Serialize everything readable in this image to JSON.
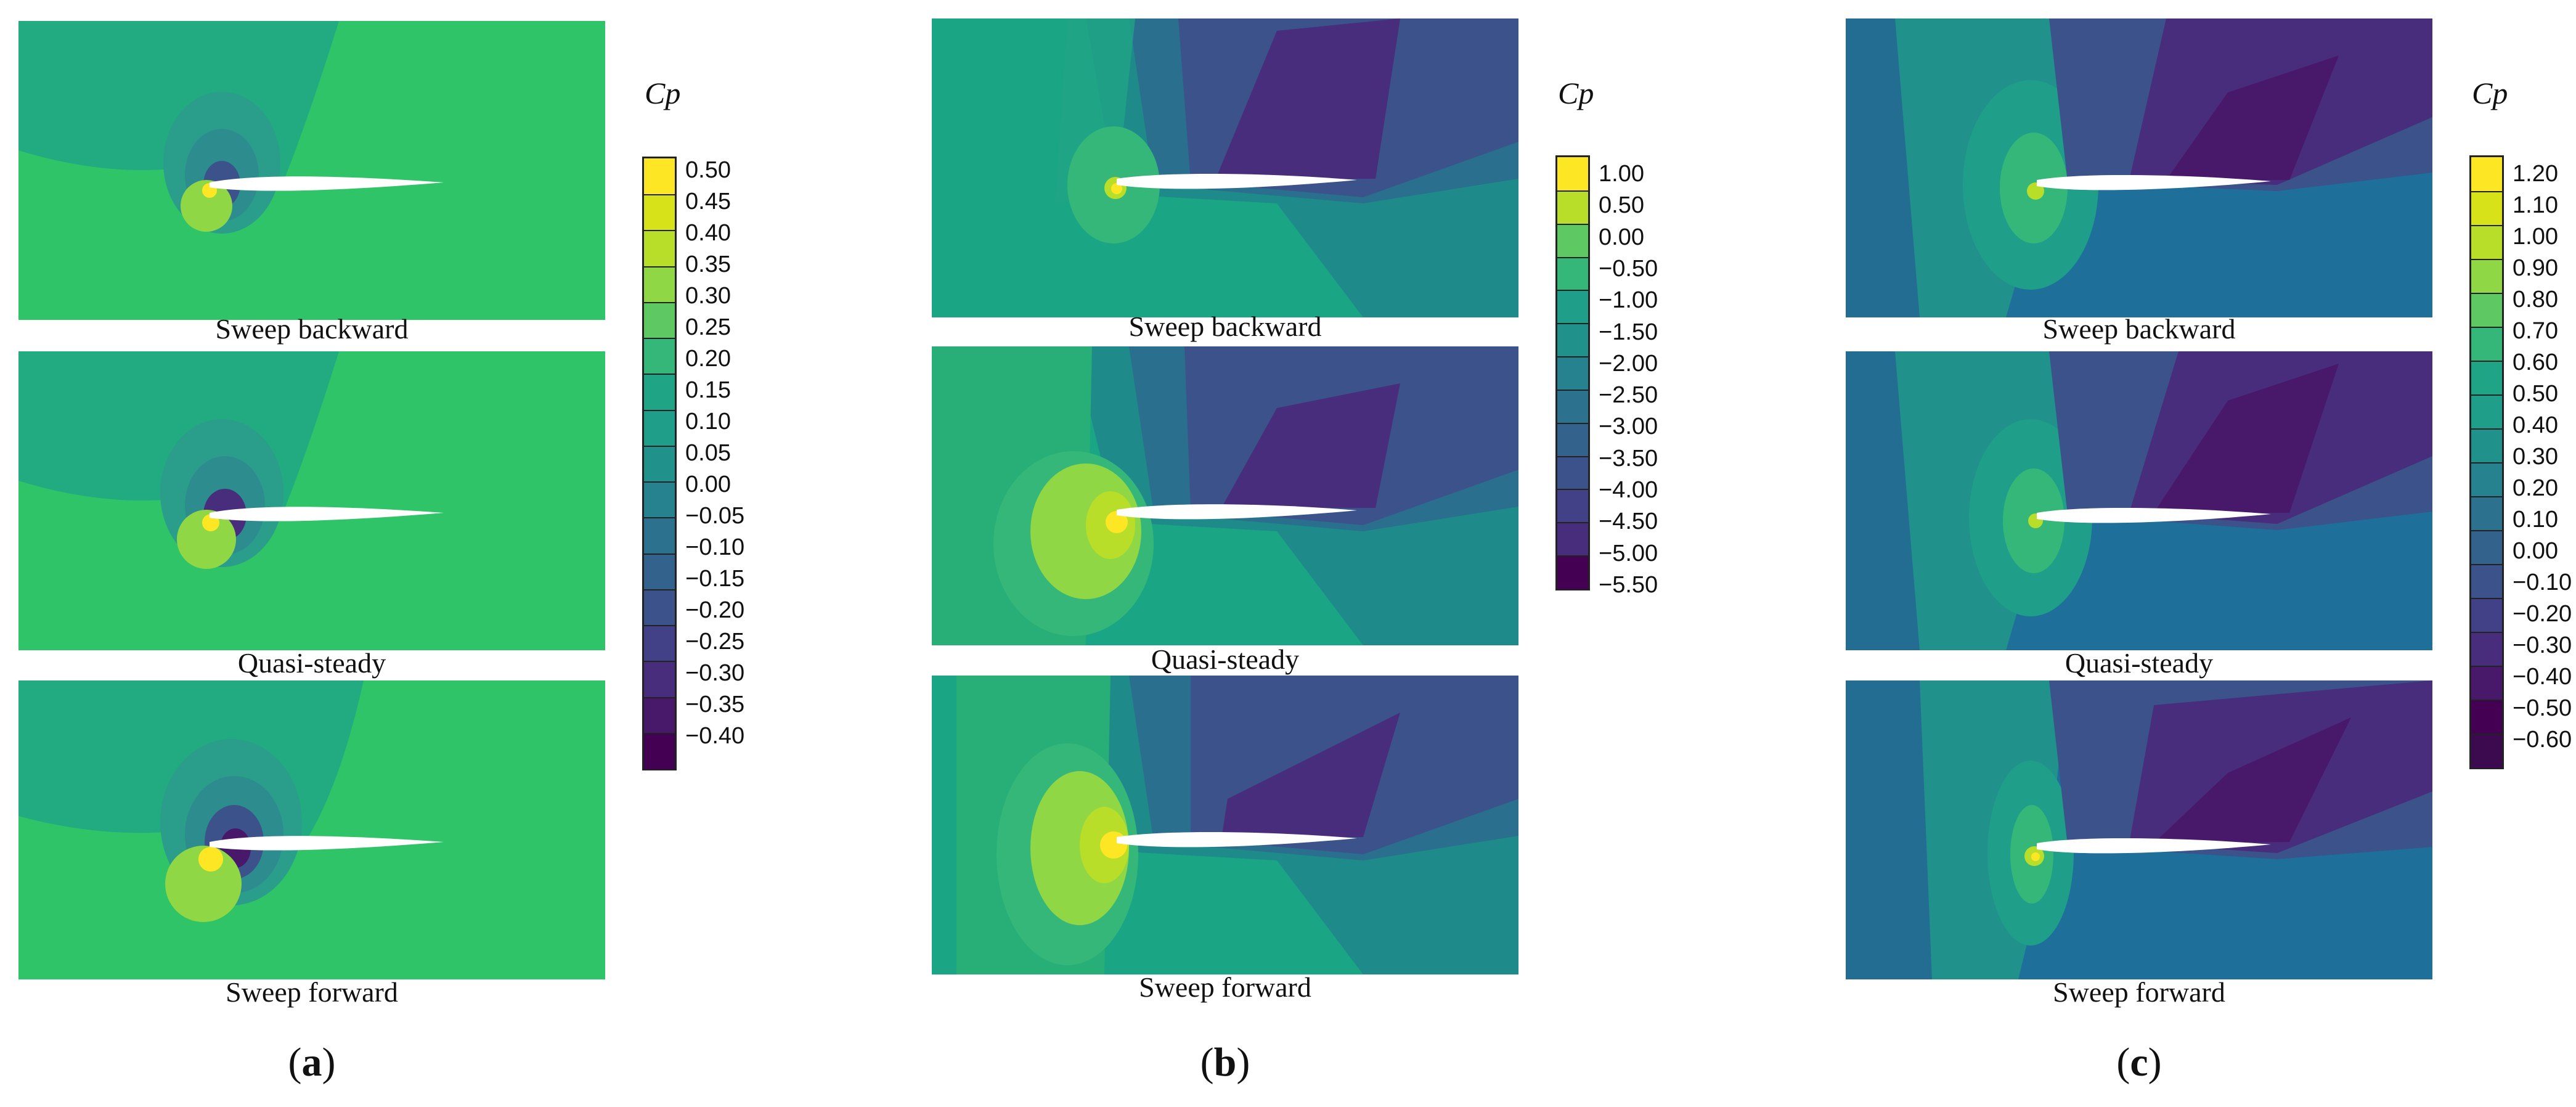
{
  "figure": {
    "groups": [
      {
        "id": "a",
        "label": "a",
        "legend_title": "Cp",
        "panels": [
          {
            "caption": "Sweep backward"
          },
          {
            "caption": "Quasi-steady"
          },
          {
            "caption": "Sweep forward"
          }
        ],
        "colorbar": {
          "labels": [
            "0.50",
            "0.45",
            "0.40",
            "0.35",
            "0.30",
            "0.25",
            "0.20",
            "0.15",
            "0.10",
            "0.05",
            "0.00",
            "−0.05",
            "−0.10",
            "−0.15",
            "−0.20",
            "−0.25",
            "−0.30",
            "−0.35",
            "−0.40"
          ],
          "colors": [
            "#fde725",
            "#d7e219",
            "#b8de29",
            "#8fd744",
            "#5ec962",
            "#35b779",
            "#20a486",
            "#1f9e89",
            "#21918c",
            "#26828e",
            "#2c728e",
            "#33638d",
            "#3b528b",
            "#424086",
            "#472d7b",
            "#48186a",
            "#440154"
          ]
        },
        "background": "#22c55e"
      },
      {
        "id": "b",
        "label": "b",
        "legend_title": "Cp",
        "panels": [
          {
            "caption": "Sweep backward"
          },
          {
            "caption": "Quasi-steady"
          },
          {
            "caption": "Sweep forward"
          }
        ],
        "colorbar": {
          "labels": [
            "1.00",
            "0.50",
            "0.00",
            "−0.50",
            "−1.00",
            "−1.50",
            "−2.00",
            "−2.50",
            "−3.00",
            "−3.50",
            "−4.00",
            "−4.50",
            "−5.00",
            "−5.50"
          ],
          "colors": [
            "#fde725",
            "#b8de29",
            "#5ec962",
            "#35b779",
            "#1f9e89",
            "#21918c",
            "#26828e",
            "#2c728e",
            "#33638d",
            "#3b528b",
            "#424086",
            "#472d7b",
            "#440154"
          ]
        },
        "background": "#1aa585"
      },
      {
        "id": "c",
        "label": "c",
        "legend_title": "Cp",
        "panels": [
          {
            "caption": "Sweep backward"
          },
          {
            "caption": "Quasi-steady"
          },
          {
            "caption": "Sweep forward"
          }
        ],
        "colorbar": {
          "labels": [
            "1.20",
            "1.10",
            "1.00",
            "0.90",
            "0.80",
            "0.70",
            "0.60",
            "0.50",
            "0.40",
            "0.30",
            "0.20",
            "0.10",
            "0.00",
            "−0.10",
            "−0.20",
            "−0.30",
            "−0.40",
            "−0.50",
            "−0.60"
          ],
          "colors": [
            "#fde725",
            "#d7e219",
            "#b8de29",
            "#8fd744",
            "#5ec962",
            "#35b779",
            "#20a486",
            "#1f9e89",
            "#21918c",
            "#26828e",
            "#2c728e",
            "#33638d",
            "#3b528b",
            "#424086",
            "#472d7b",
            "#48186a",
            "#440154",
            "#3b0a4f"
          ]
        },
        "background": "#1e6f9a"
      }
    ]
  }
}
